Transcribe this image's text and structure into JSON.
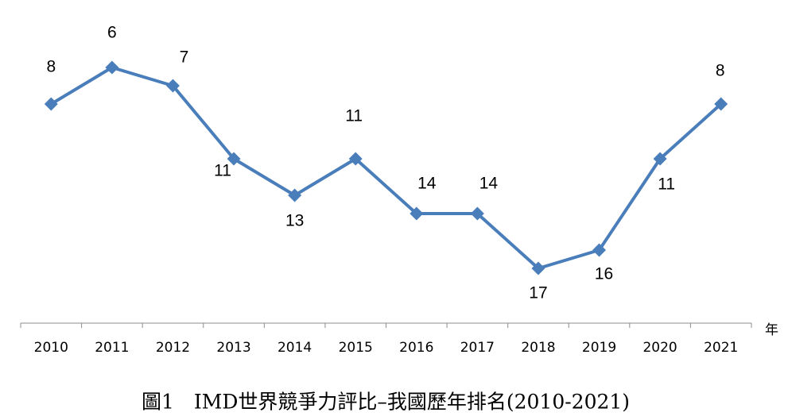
{
  "chart_data": {
    "type": "line",
    "categories": [
      "2010",
      "2011",
      "2012",
      "2013",
      "2014",
      "2015",
      "2016",
      "2017",
      "2018",
      "2019",
      "2020",
      "2021"
    ],
    "values": [
      8,
      6,
      7,
      11,
      13,
      11,
      14,
      14,
      17,
      16,
      11,
      8
    ],
    "color": "#4a7ebb",
    "ylim": [
      20,
      3
    ],
    "x_label": "年",
    "caption": "圖1　IMD世界競爭力評比–我國歷年排名(2010-2021)"
  }
}
